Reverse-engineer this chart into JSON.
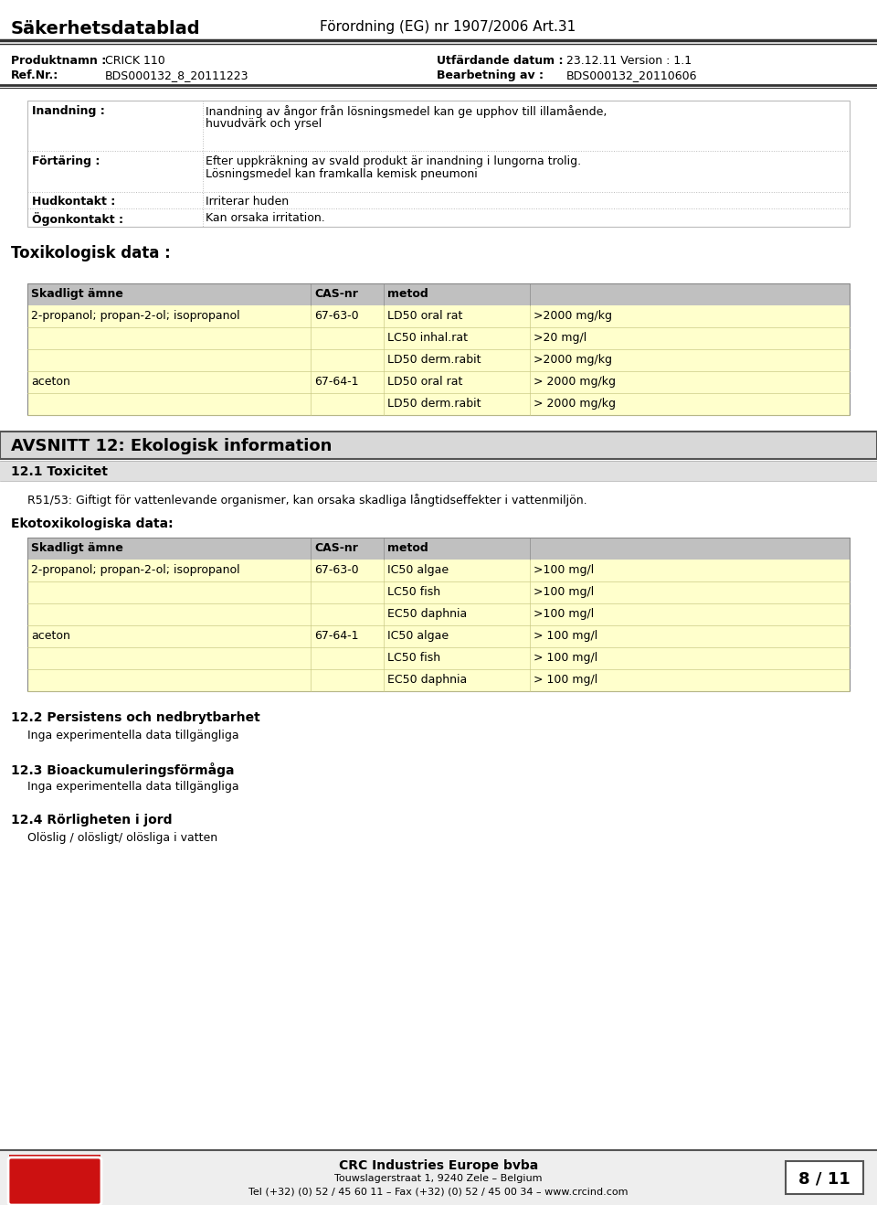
{
  "title_left": "Säkerhetsdatablad",
  "title_right": "Förordning (EG) nr 1907/2006 Art.31",
  "produktnamn_label": "Produktnamn :",
  "produktnamn_value": "CRICK 110",
  "refnr_label": "Ref.Nr.:",
  "refnr_value": "BDS000132_8_20111223",
  "utfardande_label": "Utfärdande datum :",
  "utfardande_value": "23.12.11 Version : 1.1",
  "bearbetning_label": "Bearbetning av :",
  "bearbetning_value": "BDS000132_20110606",
  "inandning_label": "Inandning :",
  "inandning_line1": "Inandning av ångor från lösningsmedel kan ge upphov till illamående,",
  "inandning_line2": "huvudvärk och yrsel",
  "fortaring_label": "Förtäring :",
  "fortaring_line1": "Efter uppkräkning av svald produkt är inandning i lungorna trolig.",
  "fortaring_line2": "Lösningsmedel kan framkalla kemisk pneumoni",
  "hudkontakt_label": "Hudkontakt :",
  "hudkontakt_text": "Irriterar huden",
  "ogonkontakt_label": "Ögonkontakt :",
  "ogonkontakt_text": "Kan orsaka irritation.",
  "toxiko_header": "Toxikologisk data :",
  "tox_table_headers": [
    "Skadligt ämne",
    "CAS-nr",
    "metod",
    ""
  ],
  "tox_table_rows": [
    [
      "2-propanol; propan-2-ol; isopropanol",
      "67-63-0",
      "LD50 oral rat",
      ">2000 mg/kg"
    ],
    [
      "",
      "",
      "LC50 inhal.rat",
      ">20 mg/l"
    ],
    [
      "",
      "",
      "LD50 derm.rabit",
      ">2000 mg/kg"
    ],
    [
      "aceton",
      "67-64-1",
      "LD50 oral rat",
      "> 2000 mg/kg"
    ],
    [
      "",
      "",
      "LD50 derm.rabit",
      "> 2000 mg/kg"
    ]
  ],
  "avsnitt12_header": "AVSNITT 12: Ekologisk information",
  "s121_header": "12.1 Toxicitet",
  "s121_text": "R51/53: Giftigt för vattenlevande organismer, kan orsaka skadliga långtidseffekter i vattenmiljön.",
  "ekotox_header": "Ekotoxikologiska data:",
  "ekotox_table_headers": [
    "Skadligt ämne",
    "CAS-nr",
    "metod",
    ""
  ],
  "ekotox_table_rows": [
    [
      "2-propanol; propan-2-ol; isopropanol",
      "67-63-0",
      "IC50 algae",
      ">100 mg/l"
    ],
    [
      "",
      "",
      "LC50 fish",
      ">100 mg/l"
    ],
    [
      "",
      "",
      "EC50 daphnia",
      ">100 mg/l"
    ],
    [
      "aceton",
      "67-64-1",
      "IC50 algae",
      "> 100 mg/l"
    ],
    [
      "",
      "",
      "LC50 fish",
      "> 100 mg/l"
    ],
    [
      "",
      "",
      "EC50 daphnia",
      "> 100 mg/l"
    ]
  ],
  "s122_header": "12.2 Persistens och nedbrytbarhet",
  "s122_text": "Inga experimentella data tillgängliga",
  "s123_header": "12.3 Bioackumuleringsförmåga",
  "s123_text": "Inga experimentella data tillgängliga",
  "s124_header": "12.4 Rörligheten i jord",
  "s124_text": "Olöslig / olösligt/ olösliga i vatten",
  "footer_company": "CRC Industries Europe bvba",
  "footer_address": "Touwslagerstraat 1, 9240 Zele – Belgium",
  "footer_tel": "Tel (+32) (0) 52 / 45 60 11 – Fax (+32) (0) 52 / 45 00 34 – www.crcind.com",
  "footer_page": "8 / 11"
}
